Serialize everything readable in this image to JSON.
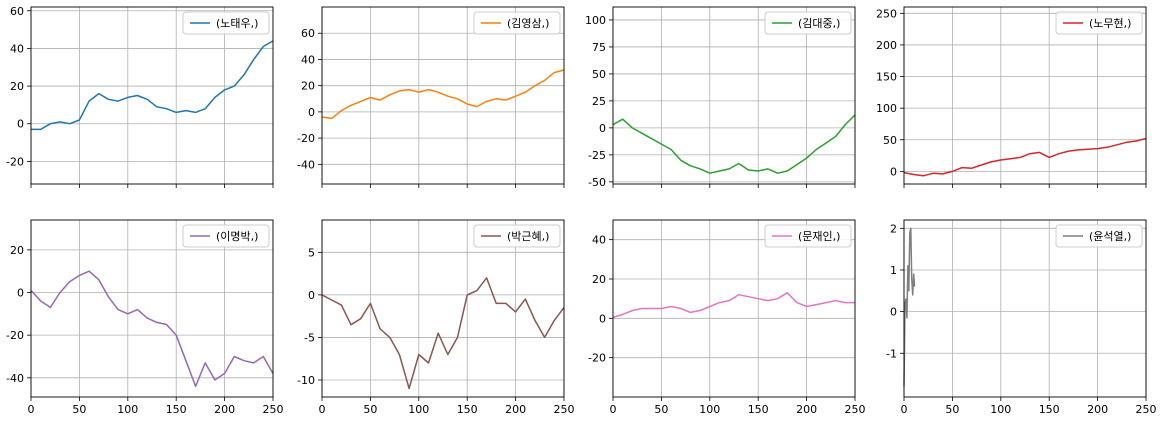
{
  "chart_data": [
    {
      "type": "line",
      "series": [
        {
          "name": "(노태우,)",
          "color": "#1f77b4",
          "x": [
            0,
            10,
            20,
            30,
            40,
            50,
            60,
            70,
            80,
            90,
            100,
            110,
            120,
            130,
            140,
            150,
            160,
            170,
            180,
            190,
            200,
            210,
            220,
            230,
            240,
            250
          ],
          "y": [
            -3,
            -3,
            0,
            1,
            0,
            2,
            12,
            16,
            13,
            12,
            14,
            15,
            13,
            9,
            8,
            6,
            7,
            6,
            8,
            14,
            18,
            20,
            26,
            34,
            41,
            44
          ]
        }
      ],
      "xlim": [
        0,
        250
      ],
      "ylim": [
        -32,
        62
      ],
      "xticks": [],
      "yticks": [
        -20,
        0,
        20,
        40,
        60
      ],
      "grid": true
    },
    {
      "type": "line",
      "series": [
        {
          "name": "(김영삼,)",
          "color": "#ff7f0e",
          "x": [
            0,
            10,
            20,
            30,
            40,
            50,
            60,
            70,
            80,
            90,
            100,
            110,
            120,
            130,
            140,
            150,
            160,
            170,
            180,
            190,
            200,
            210,
            220,
            230,
            240,
            250
          ],
          "y": [
            -4,
            -5,
            1,
            5,
            8,
            11,
            9,
            13,
            16,
            17,
            15,
            17,
            15,
            12,
            10,
            6,
            4,
            8,
            10,
            9,
            12,
            15,
            20,
            24,
            30,
            32
          ]
        }
      ],
      "xlim": [
        0,
        250
      ],
      "ylim": [
        -55,
        80
      ],
      "xticks": [],
      "yticks": [
        -40,
        -20,
        0,
        20,
        40,
        60
      ],
      "grid": true
    },
    {
      "type": "line",
      "series": [
        {
          "name": "(김대중,)",
          "color": "#2ca02c",
          "x": [
            0,
            10,
            20,
            30,
            40,
            50,
            60,
            70,
            80,
            90,
            100,
            110,
            120,
            130,
            140,
            150,
            160,
            170,
            180,
            190,
            200,
            210,
            220,
            230,
            240,
            250
          ],
          "y": [
            3,
            8,
            0,
            -5,
            -10,
            -15,
            -20,
            -30,
            -35,
            -38,
            -42,
            -40,
            -38,
            -33,
            -39,
            -40,
            -38,
            -42,
            -40,
            -34,
            -28,
            -20,
            -14,
            -8,
            3,
            12
          ]
        }
      ],
      "xlim": [
        0,
        250
      ],
      "ylim": [
        -52,
        112
      ],
      "xticks": [],
      "yticks": [
        -50,
        -25,
        0,
        25,
        50,
        75,
        100
      ],
      "grid": true
    },
    {
      "type": "line",
      "series": [
        {
          "name": "(노무현,)",
          "color": "#d62728",
          "x": [
            0,
            10,
            20,
            30,
            40,
            50,
            60,
            70,
            80,
            90,
            100,
            110,
            120,
            130,
            140,
            150,
            160,
            170,
            180,
            190,
            200,
            210,
            220,
            230,
            240,
            250
          ],
          "y": [
            -2,
            -5,
            -7,
            -3,
            -4,
            0,
            6,
            5,
            10,
            15,
            18,
            20,
            22,
            28,
            30,
            22,
            28,
            32,
            34,
            35,
            36,
            38,
            42,
            46,
            48,
            52
          ]
        }
      ],
      "xlim": [
        0,
        250
      ],
      "ylim": [
        -20,
        260
      ],
      "xticks": [],
      "yticks": [
        0,
        50,
        100,
        150,
        200,
        250
      ],
      "grid": true
    },
    {
      "type": "line",
      "series": [
        {
          "name": "(이명박,)",
          "color": "#9467bd",
          "x": [
            0,
            10,
            20,
            30,
            40,
            50,
            60,
            70,
            80,
            90,
            100,
            110,
            120,
            130,
            140,
            150,
            160,
            170,
            180,
            190,
            200,
            210,
            220,
            230,
            240,
            250
          ],
          "y": [
            1,
            -4,
            -7,
            0,
            5,
            8,
            10,
            6,
            -2,
            -8,
            -10,
            -8,
            -12,
            -14,
            -15,
            -20,
            -32,
            -44,
            -33,
            -41,
            -38,
            -30,
            -32,
            -33,
            -30,
            -38
          ]
        }
      ],
      "xlim": [
        0,
        250
      ],
      "ylim": [
        -49,
        34
      ],
      "xticks": [
        0,
        50,
        100,
        150,
        200,
        250
      ],
      "yticks": [
        -40,
        -20,
        0,
        20
      ],
      "grid": true
    },
    {
      "type": "line",
      "series": [
        {
          "name": "(박근혜,)",
          "color": "#8c564b",
          "x": [
            0,
            10,
            20,
            30,
            40,
            50,
            60,
            70,
            80,
            90,
            100,
            110,
            120,
            130,
            140,
            150,
            160,
            170,
            180,
            190,
            200,
            210,
            220,
            230,
            240,
            250
          ],
          "y": [
            0,
            -0.6,
            -1.2,
            -3.5,
            -2.8,
            -1,
            -4,
            -5,
            -7,
            -11,
            -7,
            -8,
            -4.5,
            -7,
            -5,
            0,
            0.5,
            2,
            -1,
            -1,
            -2,
            -0.5,
            -3,
            -5,
            -3,
            -1.5
          ]
        }
      ],
      "xlim": [
        0,
        250
      ],
      "ylim": [
        -12,
        8.8
      ],
      "xticks": [
        0,
        50,
        100,
        150,
        200,
        250
      ],
      "yticks": [
        -10,
        -5,
        0,
        5
      ],
      "grid": true
    },
    {
      "type": "line",
      "series": [
        {
          "name": "(문재인,)",
          "color": "#e377c2",
          "x": [
            0,
            10,
            20,
            30,
            40,
            50,
            60,
            70,
            80,
            90,
            100,
            110,
            120,
            130,
            140,
            150,
            160,
            170,
            180,
            190,
            200,
            210,
            220,
            230,
            240,
            250
          ],
          "y": [
            0.5,
            2,
            4,
            5,
            5,
            5,
            6,
            5,
            3,
            4,
            6,
            8,
            9,
            12,
            11,
            10,
            9,
            10,
            13,
            8,
            6,
            7,
            8,
            9,
            8,
            8
          ]
        }
      ],
      "xlim": [
        0,
        250
      ],
      "ylim": [
        -40,
        50
      ],
      "xticks": [
        0,
        50,
        100,
        150,
        200,
        250
      ],
      "yticks": [
        -20,
        0,
        20,
        40
      ],
      "grid": true
    },
    {
      "type": "line",
      "series": [
        {
          "name": "(윤석열,)",
          "color": "#7f7f7f",
          "x": [
            0,
            1,
            2,
            3,
            4,
            5,
            6,
            7,
            8,
            9,
            10,
            11
          ],
          "y": [
            -1.8,
            0.2,
            0.3,
            -0.15,
            1.1,
            0.5,
            1.9,
            2.0,
            0.8,
            0.4,
            0.9,
            0.6
          ]
        }
      ],
      "xlim": [
        0,
        250
      ],
      "ylim": [
        -2.05,
        2.2
      ],
      "xticks": [
        0,
        50,
        100,
        150,
        200,
        250
      ],
      "yticks": [
        -1,
        0,
        1,
        2
      ],
      "grid": true
    }
  ]
}
